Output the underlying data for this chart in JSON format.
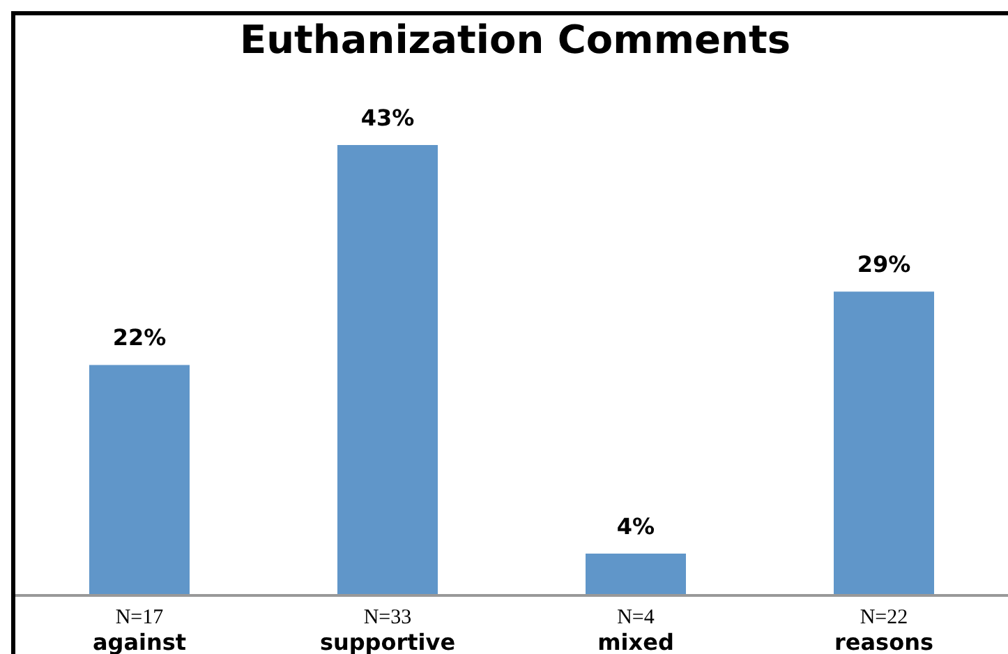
{
  "chart_data": {
    "type": "bar",
    "title": "Euthanization Comments",
    "categories": [
      "N=17\nagainst",
      "N=33\nsupportive",
      "N=4\nmixed",
      "N=22\nreasons"
    ],
    "values": [
      22,
      43,
      4,
      29
    ],
    "value_labels": [
      "22%",
      "43%",
      "4%",
      "29%"
    ],
    "color": "#6096c9"
  }
}
